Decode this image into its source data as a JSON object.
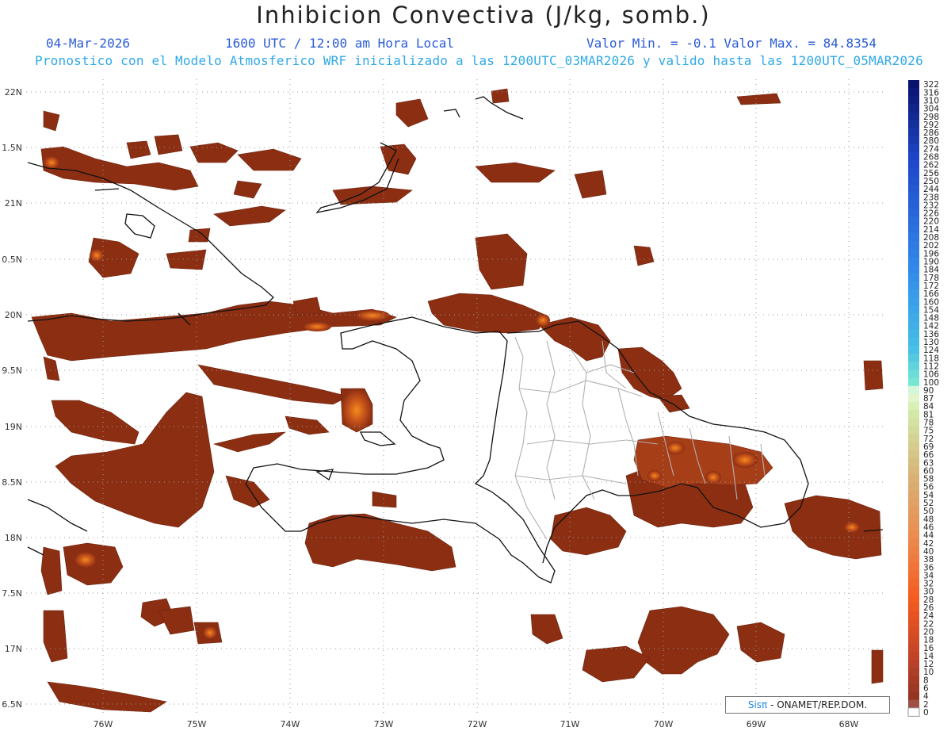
{
  "title": "Inhibicion Convectiva (J/kg, somb.)",
  "header": {
    "date": "04-Mar-2026",
    "time": "1600 UTC / 12:00 am Hora Local",
    "min_max": "Valor Min. = -0.1  Valor Max. = 84.8354",
    "model_line": "Pronostico con el Modelo Atmosferico WRF inicializado a las 1200UTC_03MAR2026 y valido hasta las  1200UTC_05MAR2026"
  },
  "axes": {
    "lon_labels": [
      "76W",
      "75W",
      "74W",
      "73W",
      "72W",
      "71W",
      "70W",
      "69W",
      "68W"
    ],
    "lat_labels": [
      "22N",
      "1.5N",
      "21N",
      "0.5N",
      "20N",
      "9.5N",
      "19N",
      "8.5N",
      "18N",
      "7.5N",
      "17N",
      "6.5N"
    ]
  },
  "colorbar": {
    "labels": [
      "322",
      "316",
      "310",
      "304",
      "298",
      "292",
      "286",
      "280",
      "274",
      "268",
      "262",
      "256",
      "250",
      "244",
      "238",
      "232",
      "226",
      "220",
      "214",
      "208",
      "202",
      "196",
      "190",
      "184",
      "178",
      "172",
      "166",
      "160",
      "154",
      "148",
      "142",
      "136",
      "130",
      "124",
      "118",
      "112",
      "106",
      "100",
      "90",
      "87",
      "84",
      "81",
      "78",
      "75",
      "72",
      "69",
      "66",
      "63",
      "60",
      "58",
      "56",
      "54",
      "52",
      "50",
      "48",
      "46",
      "44",
      "42",
      "40",
      "38",
      "36",
      "34",
      "32",
      "30",
      "28",
      "26",
      "24",
      "22",
      "20",
      "18",
      "16",
      "14",
      "12",
      "10",
      "8",
      "6",
      "4",
      "2",
      "0"
    ]
  },
  "credit": {
    "brand": "Sisπ",
    "text": " - ONAMET/REP.DOM."
  },
  "colors": {
    "field_low": "#8b2e12",
    "field_mid": "#b5461c",
    "field_high": "#f07a1a",
    "grid": "#9a9a9a"
  }
}
